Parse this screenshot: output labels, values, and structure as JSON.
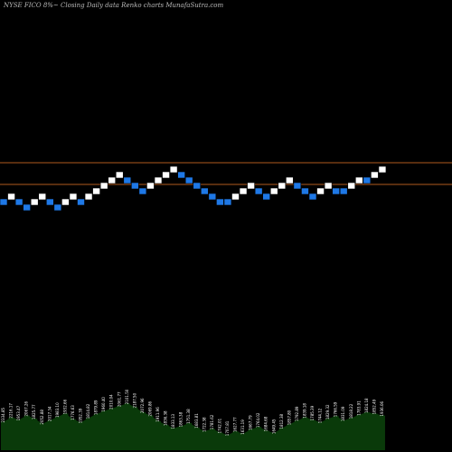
{
  "title": "NYSE FICO 8%~  Closing Daily data  Renko  charts MunafaSutra.com",
  "colors": {
    "background": "#000000",
    "up_brick": "#ffffff",
    "down_brick": "#1e78e6",
    "reference_line": "#b05a1e",
    "volume_fill": "#0a3a0a",
    "volume_label": "#ffffff"
  },
  "chart_data": {
    "type": "renko",
    "title": "NYSE FICO 8%~  Closing Daily data  Renko  charts MunafaSutra.com",
    "bricks": [
      {
        "level": 0,
        "dir": "down"
      },
      {
        "level": 1,
        "dir": "up"
      },
      {
        "level": 0,
        "dir": "down"
      },
      {
        "level": -1,
        "dir": "down"
      },
      {
        "level": 0,
        "dir": "up"
      },
      {
        "level": 1,
        "dir": "up"
      },
      {
        "level": 0,
        "dir": "down"
      },
      {
        "level": -1,
        "dir": "down"
      },
      {
        "level": 0,
        "dir": "up"
      },
      {
        "level": 1,
        "dir": "up"
      },
      {
        "level": 0,
        "dir": "down"
      },
      {
        "level": 1,
        "dir": "up"
      },
      {
        "level": 2,
        "dir": "up"
      },
      {
        "level": 3,
        "dir": "up"
      },
      {
        "level": 4,
        "dir": "up"
      },
      {
        "level": 5,
        "dir": "up"
      },
      {
        "level": 4,
        "dir": "down"
      },
      {
        "level": 3,
        "dir": "down"
      },
      {
        "level": 2,
        "dir": "down"
      },
      {
        "level": 3,
        "dir": "up"
      },
      {
        "level": 4,
        "dir": "up"
      },
      {
        "level": 5,
        "dir": "up"
      },
      {
        "level": 6,
        "dir": "up"
      },
      {
        "level": 5,
        "dir": "down"
      },
      {
        "level": 4,
        "dir": "down"
      },
      {
        "level": 3,
        "dir": "down"
      },
      {
        "level": 2,
        "dir": "down"
      },
      {
        "level": 1,
        "dir": "down"
      },
      {
        "level": 0,
        "dir": "down"
      },
      {
        "level": 0,
        "dir": "down"
      },
      {
        "level": 1,
        "dir": "up"
      },
      {
        "level": 2,
        "dir": "up"
      },
      {
        "level": 3,
        "dir": "up"
      },
      {
        "level": 2,
        "dir": "down"
      },
      {
        "level": 1,
        "dir": "down"
      },
      {
        "level": 2,
        "dir": "up"
      },
      {
        "level": 3,
        "dir": "up"
      },
      {
        "level": 4,
        "dir": "up"
      },
      {
        "level": 3,
        "dir": "down"
      },
      {
        "level": 2,
        "dir": "down"
      },
      {
        "level": 1,
        "dir": "down"
      },
      {
        "level": 2,
        "dir": "up"
      },
      {
        "level": 3,
        "dir": "up"
      },
      {
        "level": 2,
        "dir": "down"
      },
      {
        "level": 2,
        "dir": "down"
      },
      {
        "level": 3,
        "dir": "up"
      },
      {
        "level": 4,
        "dir": "up"
      },
      {
        "level": 4,
        "dir": "down"
      },
      {
        "level": 5,
        "dir": "up"
      },
      {
        "level": 6,
        "dir": "up"
      }
    ],
    "reference_lines": [
      "upper",
      "lower"
    ],
    "volume": [
      0.45,
      0.52,
      0.48,
      0.55,
      0.5,
      0.42,
      0.47,
      0.53,
      0.58,
      0.49,
      0.44,
      0.51,
      0.57,
      0.62,
      0.66,
      0.7,
      0.74,
      0.68,
      0.6,
      0.55,
      0.46,
      0.4,
      0.35,
      0.38,
      0.43,
      0.36,
      0.3,
      0.34,
      0.28,
      0.24,
      0.3,
      0.26,
      0.33,
      0.37,
      0.31,
      0.27,
      0.35,
      0.41,
      0.47,
      0.52,
      0.48,
      0.44,
      0.5,
      0.54,
      0.47,
      0.51,
      0.56,
      0.6,
      0.58,
      0.55
    ],
    "volume_labels": [
      "2334.85",
      "2216.17",
      "1953.47",
      "2067.26",
      "1825.77",
      "2052.88",
      "2017.34",
      "1983.10",
      "1932.66",
      "1776.63",
      "1952.39",
      "1814.82",
      "1879.89",
      "1960.40",
      "2010.04",
      "2061.77",
      "2101.50",
      "2187.50",
      "2072.96",
      "2069.86",
      "1911.96",
      "1836.38",
      "1833.13",
      "1863.38",
      "1751.38",
      "1683.81",
      "1722.38",
      "1781.62",
      "1742.01",
      "1707.81",
      "1627.77",
      "1631.19",
      "1667.79",
      "1764.02",
      "1684.68",
      "1649.45",
      "1812.38",
      "1857.80",
      "1792.89",
      "1839.18",
      "1785.39",
      "1744.12",
      "1829.32",
      "1766.59",
      "1831.09",
      "1818.22",
      "1783.91",
      "1824.18",
      "1852.49",
      "1936.06"
    ]
  }
}
